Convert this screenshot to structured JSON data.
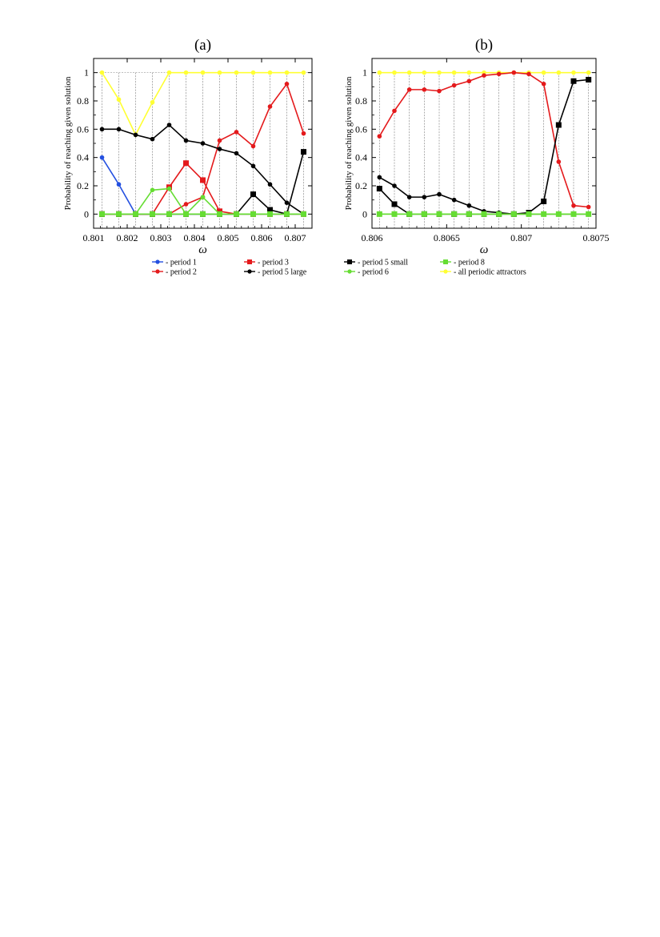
{
  "chart_data": [
    {
      "type": "line",
      "title": "(a)",
      "xlabel": "ω",
      "ylabel": "Probability of reaching given solution",
      "xlim": [
        0.801,
        0.8075
      ],
      "ylim": [
        -0.1,
        1.1
      ],
      "xticks": [
        0.801,
        0.802,
        0.803,
        0.804,
        0.805,
        0.806,
        0.807
      ],
      "xtick_labels": [
        "0.801",
        "0.802",
        "0.803",
        "0.804",
        "0.805",
        "0.806",
        "0.807"
      ],
      "yticks": [
        0,
        0.2,
        0.4,
        0.6,
        0.8,
        1
      ],
      "ytick_labels": [
        "0",
        "0.2",
        "0.4",
        "0.6",
        "0.8",
        "1"
      ],
      "grid": "vertical dashed lines at sample points",
      "x": [
        0.80125,
        0.80175,
        0.80225,
        0.80275,
        0.80325,
        0.80375,
        0.80425,
        0.80475,
        0.80525,
        0.80575,
        0.80625,
        0.80675,
        0.80725
      ],
      "series": [
        {
          "name": "period 1",
          "color": "#2450e0",
          "marker": "circle",
          "values": [
            0.4,
            0.21,
            0,
            0,
            0,
            0,
            0,
            0,
            0,
            0,
            0,
            0,
            0
          ]
        },
        {
          "name": "period 2",
          "color": "#e41a1c",
          "marker": "circle",
          "values": [
            0,
            0,
            0,
            0,
            0,
            0.07,
            0.12,
            0.52,
            0.58,
            0.48,
            0.76,
            0.92,
            0.57
          ]
        },
        {
          "name": "period 3",
          "color": "#e41a1c",
          "marker": "square",
          "values": [
            0,
            0,
            0,
            0,
            0.19,
            0.36,
            0.24,
            0.02,
            0,
            0,
            0,
            0,
            0
          ]
        },
        {
          "name": "period 5 large",
          "color": "#000000",
          "marker": "circle",
          "values": [
            0.6,
            0.6,
            0.56,
            0.53,
            0.63,
            0.52,
            0.5,
            0.46,
            0.43,
            0.34,
            0.21,
            0.08,
            0
          ]
        },
        {
          "name": "period 5 small",
          "color": "#000000",
          "marker": "square",
          "values": [
            0,
            0,
            0,
            0,
            0,
            0,
            0,
            0,
            0,
            0.14,
            0.03,
            0,
            0.44
          ]
        },
        {
          "name": "period 6",
          "color": "#66dd33",
          "marker": "circle",
          "values": [
            0,
            0,
            0,
            0.17,
            0.18,
            0,
            0.12,
            0,
            0,
            0,
            0,
            0,
            0
          ]
        },
        {
          "name": "period 8",
          "color": "#66dd33",
          "marker": "square",
          "values": [
            0,
            0,
            0,
            0,
            0,
            0,
            0,
            0,
            0,
            0,
            0,
            0,
            0
          ]
        },
        {
          "name": "all periodic attractors",
          "color": "#ffff33",
          "marker": "circle",
          "values": [
            1,
            0.81,
            0.56,
            0.79,
            1,
            1,
            1,
            1,
            1,
            1,
            1,
            1,
            1
          ]
        }
      ]
    },
    {
      "type": "line",
      "title": "(b)",
      "xlabel": "ω",
      "ylabel": "Probability of reaching given solution",
      "xlim": [
        0.806,
        0.8075
      ],
      "ylim": [
        -0.1,
        1.1
      ],
      "xticks": [
        0.806,
        0.8065,
        0.807,
        0.8075
      ],
      "xtick_labels": [
        "0.806",
        "0.8065",
        "0.807",
        "0.8075"
      ],
      "yticks": [
        0,
        0.2,
        0.4,
        0.6,
        0.8,
        1
      ],
      "ytick_labels": [
        "0",
        "0.2",
        "0.4",
        "0.6",
        "0.8",
        "1"
      ],
      "grid": "vertical dashed lines at sample points",
      "x": [
        0.80605,
        0.80615,
        0.80625,
        0.80635,
        0.80645,
        0.80655,
        0.80665,
        0.80675,
        0.80685,
        0.80695,
        0.80705,
        0.80715,
        0.80725,
        0.80735,
        0.80745
      ],
      "series": [
        {
          "name": "period 2",
          "color": "#e41a1c",
          "marker": "circle",
          "values": [
            0.55,
            0.73,
            0.88,
            0.88,
            0.87,
            0.91,
            0.94,
            0.98,
            0.99,
            1,
            0.99,
            0.92,
            0.37,
            0.06,
            0.05
          ]
        },
        {
          "name": "period 5 large",
          "color": "#000000",
          "marker": "circle",
          "values": [
            0.26,
            0.2,
            0.12,
            0.12,
            0.14,
            0.1,
            0.06,
            0.02,
            0.01,
            0,
            0,
            0,
            0,
            0,
            0
          ]
        },
        {
          "name": "period 5 small",
          "color": "#000000",
          "marker": "square",
          "values": [
            0.18,
            0.07,
            0,
            0,
            0,
            0,
            0,
            0,
            0,
            0,
            0.01,
            0.09,
            0.63,
            0.94,
            0.95
          ]
        },
        {
          "name": "period 6",
          "color": "#66dd33",
          "marker": "circle",
          "values": [
            0,
            0,
            0,
            0,
            0,
            0,
            0,
            0,
            0,
            0,
            0,
            0,
            0,
            0,
            0
          ]
        },
        {
          "name": "period 8",
          "color": "#66dd33",
          "marker": "square",
          "values": [
            0,
            0,
            0,
            0,
            0,
            0,
            0,
            0,
            0,
            0,
            0,
            0,
            0,
            0,
            0
          ]
        },
        {
          "name": "all periodic attractors",
          "color": "#ffff33",
          "marker": "circle",
          "values": [
            1,
            1,
            1,
            1,
            1,
            1,
            1,
            1,
            1,
            1,
            1,
            1,
            1,
            1,
            1
          ]
        }
      ]
    }
  ],
  "legend": {
    "prefix": "- ",
    "items": [
      {
        "label": "period 1",
        "color": "#2450e0",
        "marker": "circle"
      },
      {
        "label": "period 3",
        "color": "#e41a1c",
        "marker": "square"
      },
      {
        "label": "period 5 small",
        "color": "#000000",
        "marker": "square"
      },
      {
        "label": "period 8",
        "color": "#66dd33",
        "marker": "square"
      },
      {
        "label": "period 2",
        "color": "#e41a1c",
        "marker": "circle"
      },
      {
        "label": "period 5 large",
        "color": "#000000",
        "marker": "circle"
      },
      {
        "label": "period 6",
        "color": "#66dd33",
        "marker": "circle"
      },
      {
        "label": "all periodic attractors",
        "color": "#ffff33",
        "marker": "circle"
      }
    ]
  }
}
